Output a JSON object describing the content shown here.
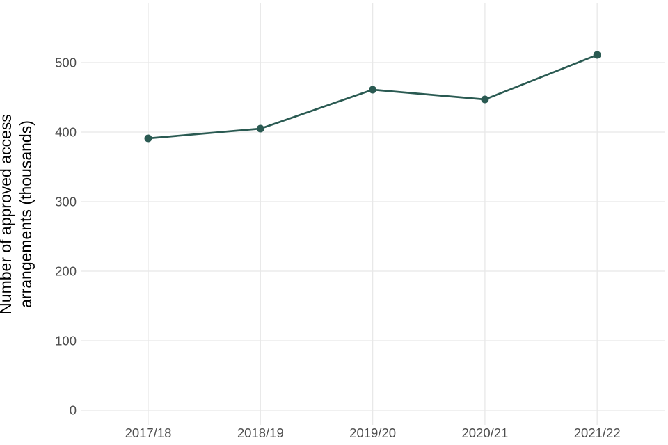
{
  "chart_data": {
    "type": "line",
    "title": "",
    "categories": [
      "2017/18",
      "2018/19",
      "2019/20",
      "2020/21",
      "2021/22"
    ],
    "values": [
      391,
      405,
      461,
      447,
      511
    ],
    "xlabel": "",
    "ylabel": "Number of approved access arrangements (thousands)",
    "ylabel_lines": [
      "Number of approved access",
      "arrangements (thousands)"
    ],
    "yticks": [
      0,
      100,
      200,
      300,
      400,
      500
    ],
    "ylim": [
      0,
      585
    ],
    "grid": "major gridlines on, white background",
    "legend": "none",
    "colors": {
      "line": "#2a5a52",
      "point": "#2a5a52",
      "grid": "#e8e8e8",
      "tick_label": "#4d4d4d",
      "axis_title": "#000000",
      "background": "#ffffff"
    }
  }
}
